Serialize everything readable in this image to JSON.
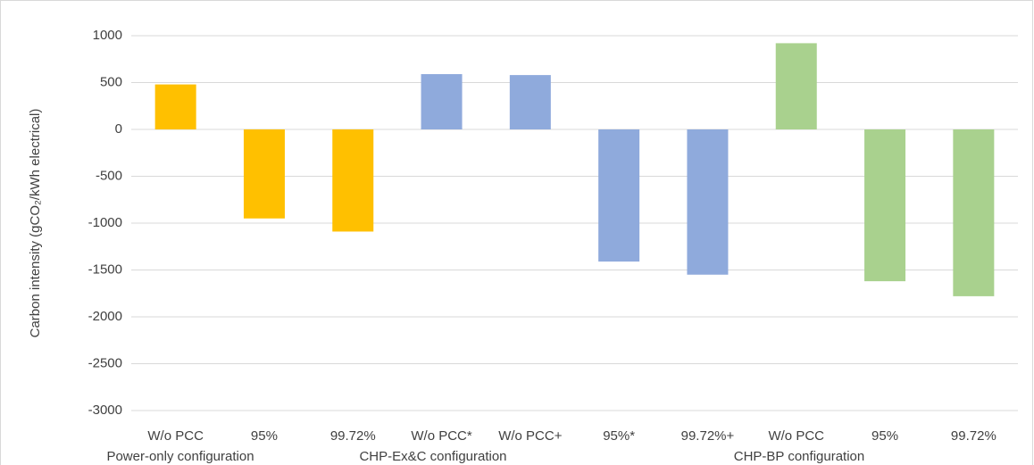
{
  "chart_data": {
    "type": "bar",
    "y_label": "Carbon intensity (gCO₂/kWh electrical)",
    "categories": [
      "W/o PCC",
      "95%",
      "99.72%",
      "W/o PCC*",
      "W/o PCC+",
      "95%*",
      "99.72%+",
      "W/o PCC",
      "95%",
      "99.72%"
    ],
    "values": [
      480,
      -950,
      -1090,
      590,
      580,
      -1410,
      -1550,
      920,
      -1620,
      -1780
    ],
    "colors": [
      "#ffc000",
      "#ffc000",
      "#ffc000",
      "#8faadc",
      "#8faadc",
      "#8faadc",
      "#8faadc",
      "#a9d18e",
      "#a9d18e",
      "#a9d18e"
    ],
    "groups": [
      "Power-only configuration",
      "CHP-Ex&C configuration",
      "CHP-BP configuration"
    ],
    "ylim": [
      -3000,
      1000
    ],
    "yticks": [
      -3000,
      -2500,
      -2000,
      -1500,
      -1000,
      -500,
      0,
      500,
      1000
    ],
    "grid": true
  }
}
